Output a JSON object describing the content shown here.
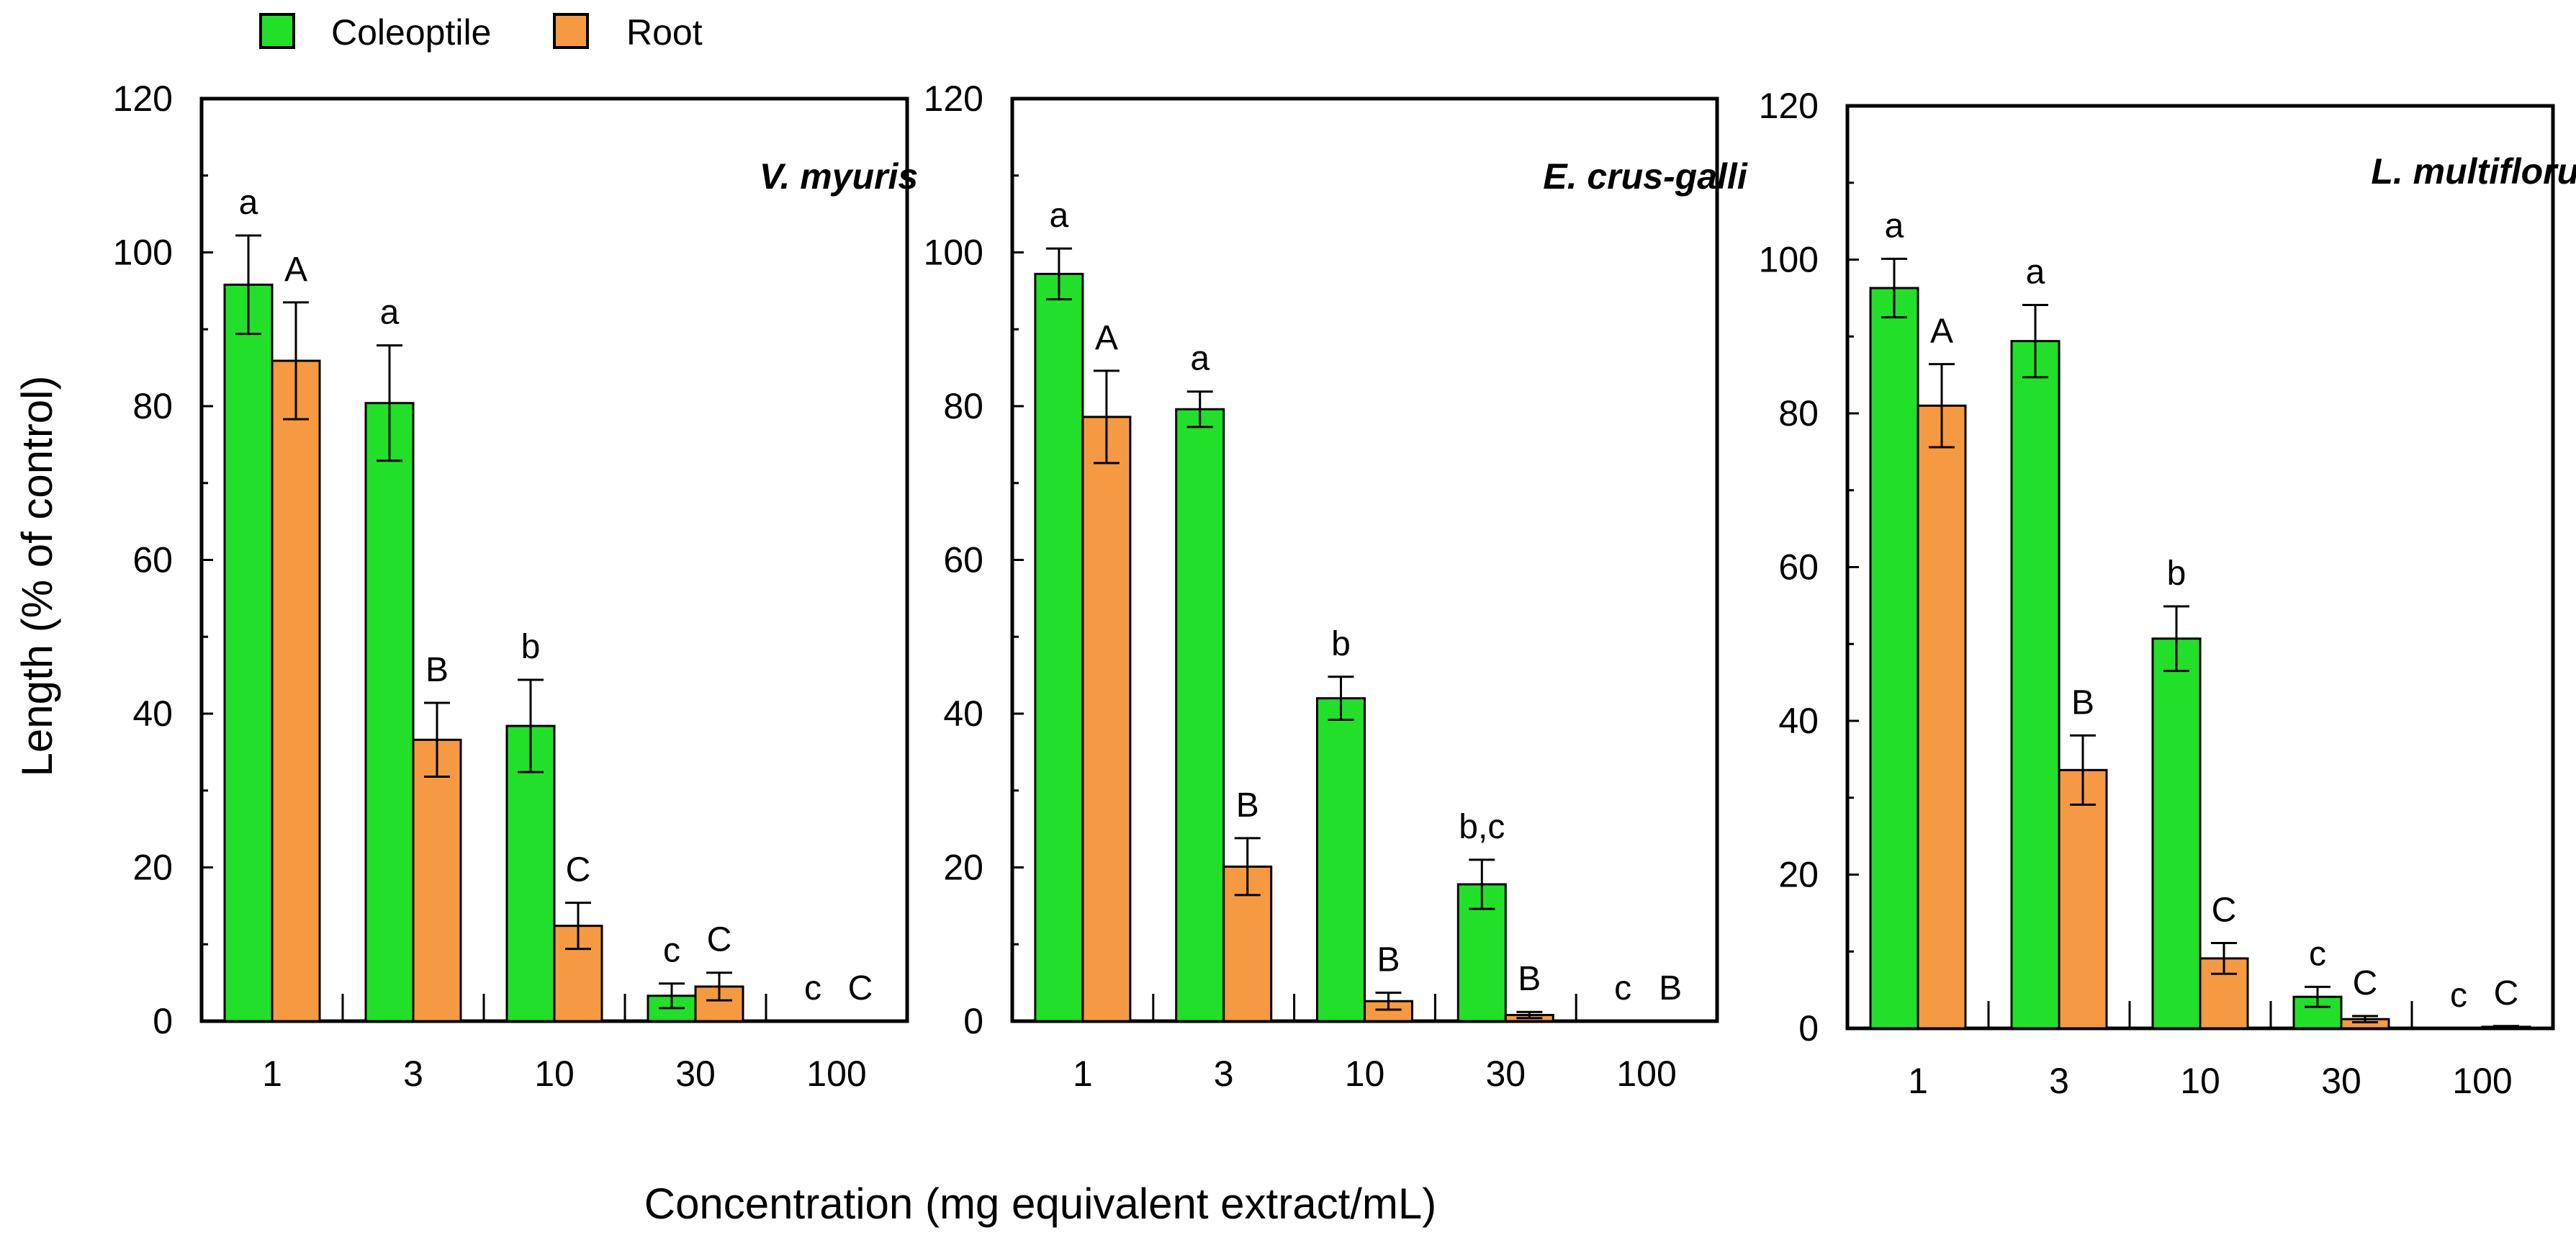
{
  "legend": {
    "items": [
      {
        "label": "Coleoptile",
        "color": "#22e02a"
      },
      {
        "label": "Root",
        "color": "#f59a42"
      }
    ]
  },
  "ylabel": "Length  (% of control)",
  "xlabel": "Concentration (mg equivalent extract/mL)",
  "chart_data": [
    {
      "type": "bar",
      "title": "V. myuris",
      "categories": [
        "1",
        "3",
        "10",
        "30",
        "100"
      ],
      "ylim": [
        0,
        120
      ],
      "yticks": [
        "0",
        "20",
        "40",
        "60",
        "80",
        "100",
        "120"
      ],
      "series": [
        {
          "name": "Coleoptile",
          "values": [
            95.8,
            80.4,
            38.4,
            3.3,
            0
          ],
          "errors": [
            6.4,
            7.5,
            6.0,
            1.6,
            0
          ],
          "letters": [
            "a",
            "a",
            "b",
            "c",
            "c"
          ]
        },
        {
          "name": "Root",
          "values": [
            85.9,
            36.6,
            12.4,
            4.5,
            0
          ],
          "errors": [
            7.6,
            4.8,
            3.0,
            1.8,
            0
          ],
          "letters": [
            "A",
            "B",
            "C",
            "C",
            "C"
          ]
        }
      ]
    },
    {
      "type": "bar",
      "title": "E. crus-galli",
      "categories": [
        "1",
        "3",
        "10",
        "30",
        "100"
      ],
      "ylim": [
        0,
        120
      ],
      "yticks": [
        "0",
        "20",
        "40",
        "60",
        "80",
        "100",
        "120"
      ],
      "series": [
        {
          "name": "Coleoptile",
          "values": [
            97.2,
            79.6,
            42.0,
            17.8,
            0
          ],
          "errors": [
            3.3,
            2.3,
            2.8,
            3.2,
            0
          ],
          "letters": [
            "a",
            "a",
            "b",
            "b,c",
            "c"
          ]
        },
        {
          "name": "Root",
          "values": [
            78.6,
            20.1,
            2.6,
            0.8,
            0
          ],
          "errors": [
            6.0,
            3.7,
            1.1,
            0.4,
            0
          ],
          "letters": [
            "A",
            "B",
            "B",
            "B",
            "B"
          ]
        }
      ]
    },
    {
      "type": "bar",
      "title": "L. multiflorum",
      "categories": [
        "1",
        "3",
        "10",
        "30",
        "100"
      ],
      "ylim": [
        0,
        120
      ],
      "yticks": [
        "0",
        "20",
        "40",
        "60",
        "80",
        "100",
        "120"
      ],
      "series": [
        {
          "name": "Coleoptile",
          "values": [
            96.3,
            89.4,
            50.7,
            4.1,
            0
          ],
          "errors": [
            3.8,
            4.7,
            4.2,
            1.3,
            0
          ],
          "letters": [
            "a",
            "a",
            "b",
            "c",
            "c"
          ]
        },
        {
          "name": "Root",
          "values": [
            81.0,
            33.6,
            9.1,
            1.2,
            0.2
          ],
          "errors": [
            5.4,
            4.5,
            2.0,
            0.4,
            0.1
          ],
          "letters": [
            "A",
            "B",
            "C",
            "C",
            "C"
          ]
        }
      ]
    }
  ]
}
